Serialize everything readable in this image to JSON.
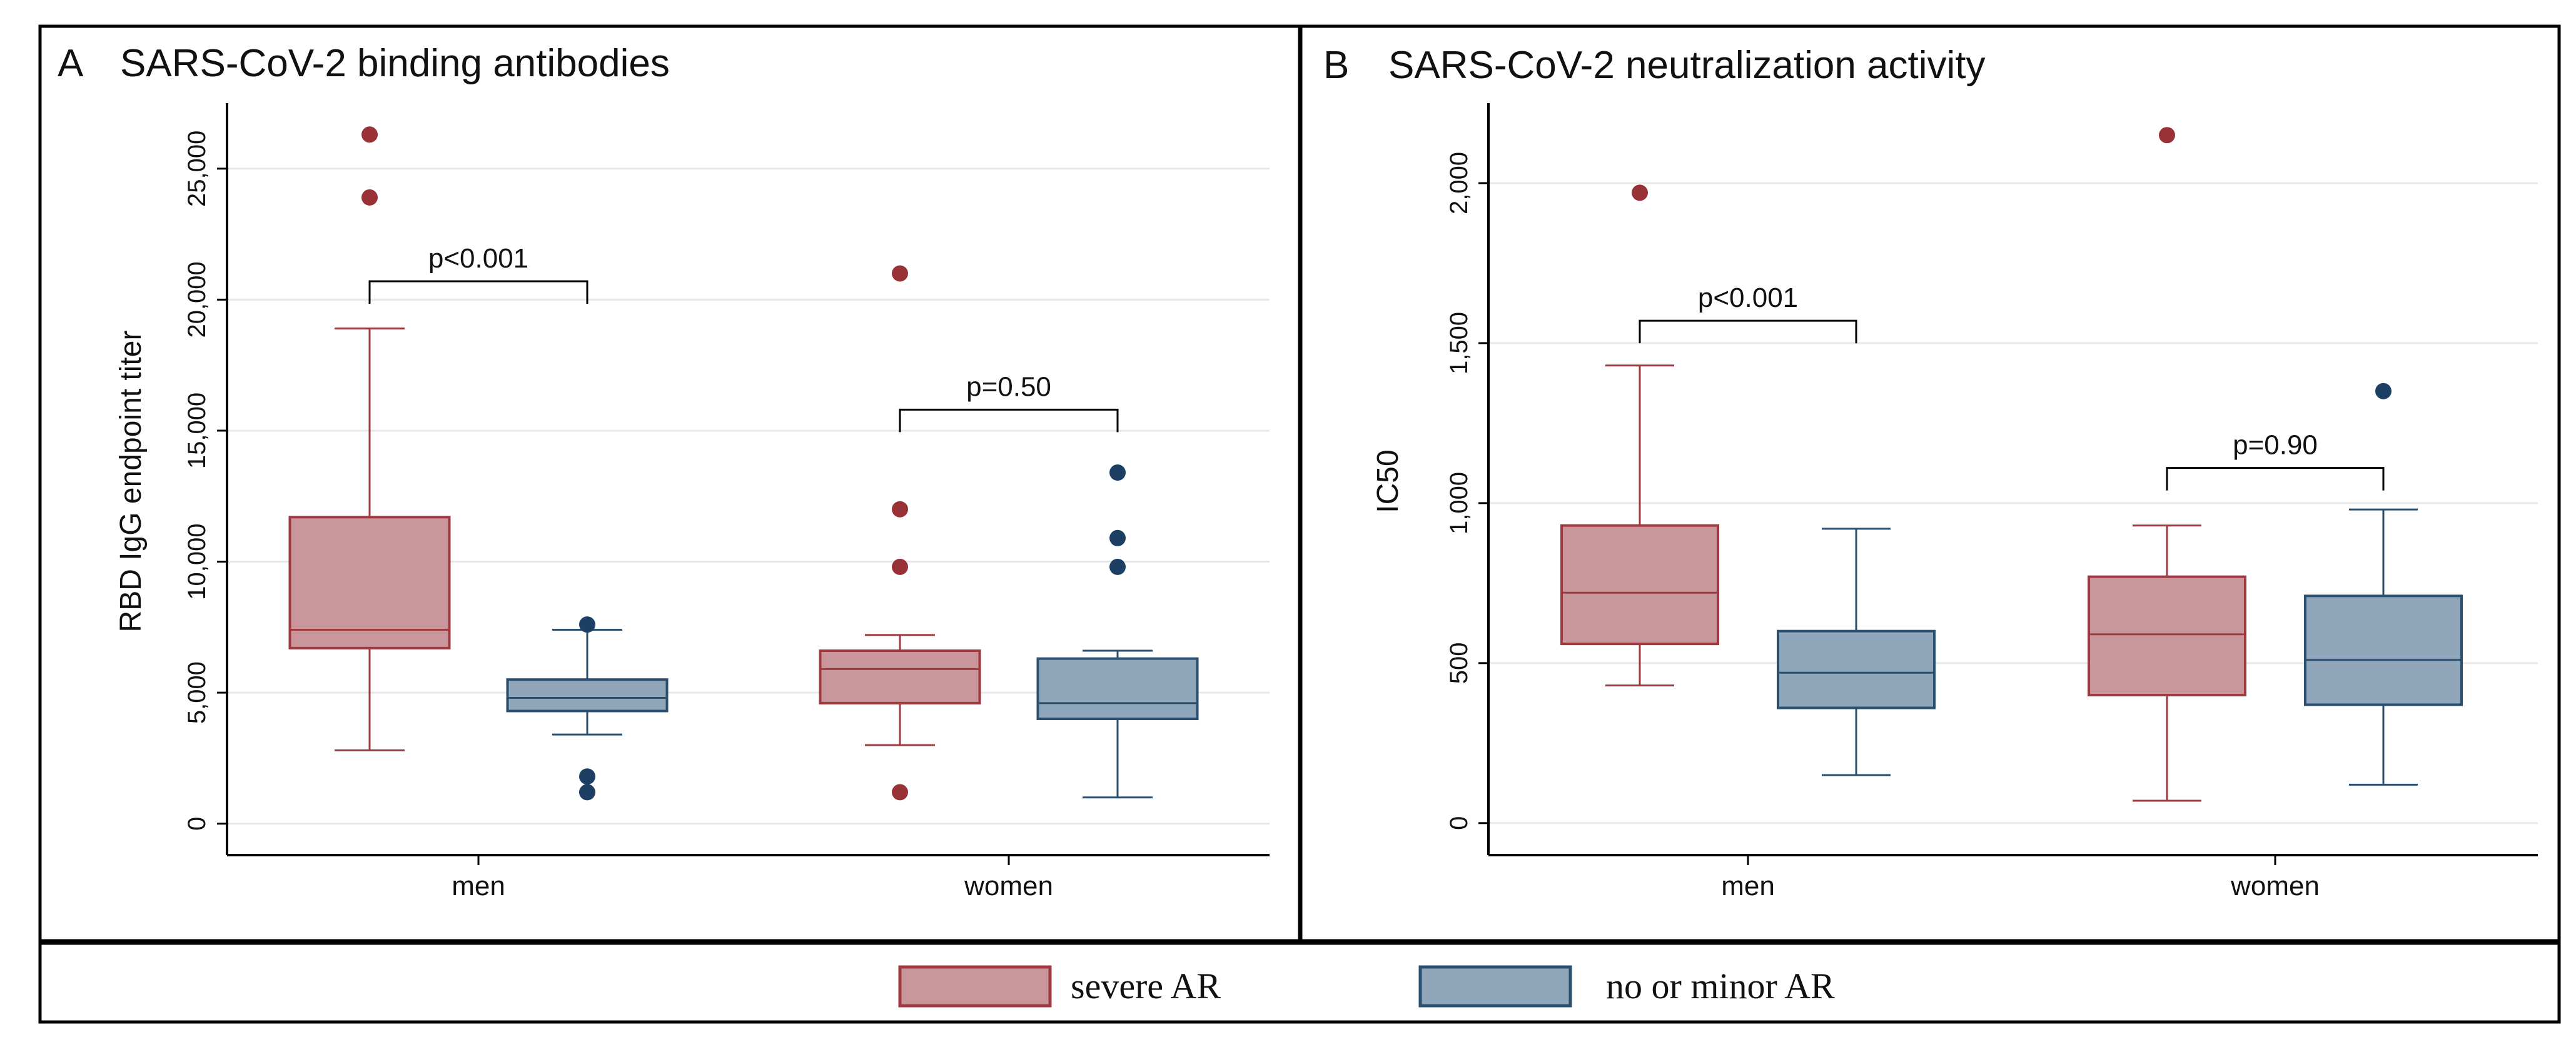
{
  "colors": {
    "severe_fill": "#c9979b",
    "severe_stroke": "#a0393f",
    "minor_fill": "#8fa6bb",
    "minor_stroke": "#2b4f6f",
    "severe_dot": "#983236",
    "minor_dot": "#1d3f63",
    "grid": "#e8e8e8",
    "frame": "#000000"
  },
  "legend": [
    {
      "key": "severe",
      "label": "severe AR"
    },
    {
      "key": "minor",
      "label": "no or minor AR"
    }
  ],
  "chart_data": [
    {
      "type": "box",
      "panel_letter": "A",
      "title": "SARS-CoV-2 binding antibodies",
      "ylabel": "RBD IgG endpoint titer",
      "xlabel": "",
      "ylim": [
        -1200,
        27500
      ],
      "yticks": [
        0,
        5000,
        10000,
        15000,
        20000,
        25000
      ],
      "ytick_labels": [
        "0",
        "5,000",
        "10,000",
        "15,000",
        "20,000",
        "25,000"
      ],
      "grid": true,
      "categories": [
        "men",
        "women"
      ],
      "series": [
        {
          "name": "severe AR",
          "key": "severe",
          "boxes": [
            {
              "whisker_low": 2800,
              "q1": 6700,
              "median": 7400,
              "q3": 11700,
              "whisker_high": 18900,
              "outliers": [
                23900,
                26300
              ]
            },
            {
              "whisker_low": 3000,
              "q1": 4600,
              "median": 5900,
              "q3": 6600,
              "whisker_high": 7200,
              "outliers": [
                1200,
                9800,
                12000,
                21000
              ]
            }
          ]
        },
        {
          "name": "no or minor AR",
          "key": "minor",
          "boxes": [
            {
              "whisker_low": 3400,
              "q1": 4300,
              "median": 4800,
              "q3": 5500,
              "whisker_high": 7400,
              "outliers": [
                1200,
                1800,
                7600
              ]
            },
            {
              "whisker_low": 1000,
              "q1": 4000,
              "median": 4600,
              "q3": 6300,
              "whisker_high": 6600,
              "outliers": [
                9800,
                10900,
                13400
              ]
            }
          ]
        }
      ],
      "annotations": [
        {
          "category": "men",
          "text": "p<0.001",
          "bracket_y": 20700
        },
        {
          "category": "women",
          "text": "p=0.50",
          "bracket_y": 15800
        }
      ]
    },
    {
      "type": "box",
      "panel_letter": "B",
      "title": "SARS-CoV-2 neutralization activity",
      "ylabel": "IC50",
      "xlabel": "",
      "ylim": [
        -100,
        2250
      ],
      "yticks": [
        0,
        500,
        1000,
        1500,
        2000
      ],
      "ytick_labels": [
        "0",
        "500",
        "1,000",
        "1,500",
        "2,000"
      ],
      "grid": true,
      "categories": [
        "men",
        "women"
      ],
      "series": [
        {
          "name": "severe AR",
          "key": "severe",
          "boxes": [
            {
              "whisker_low": 430,
              "q1": 560,
              "median": 720,
              "q3": 930,
              "whisker_high": 1430,
              "outliers": [
                1970
              ]
            },
            {
              "whisker_low": 70,
              "q1": 400,
              "median": 590,
              "q3": 770,
              "whisker_high": 930,
              "outliers": [
                2150
              ]
            }
          ]
        },
        {
          "name": "no or minor AR",
          "key": "minor",
          "boxes": [
            {
              "whisker_low": 150,
              "q1": 360,
              "median": 470,
              "q3": 600,
              "whisker_high": 920,
              "outliers": []
            },
            {
              "whisker_low": 120,
              "q1": 370,
              "median": 510,
              "q3": 710,
              "whisker_high": 980,
              "outliers": [
                1350
              ]
            }
          ]
        }
      ],
      "annotations": [
        {
          "category": "men",
          "text": "p<0.001",
          "bracket_y": 1570
        },
        {
          "category": "women",
          "text": "p=0.90",
          "bracket_y": 1110
        }
      ]
    }
  ]
}
